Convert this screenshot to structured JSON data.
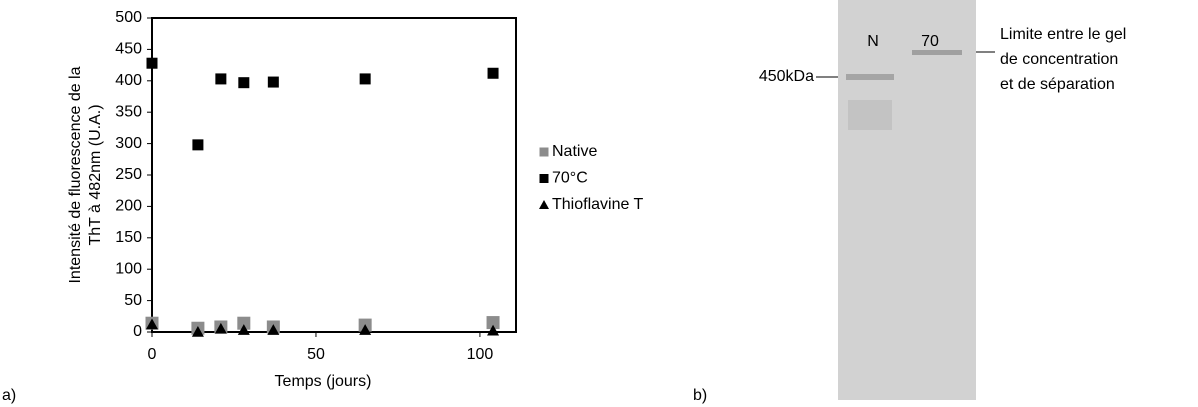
{
  "chart_data": {
    "type": "scatter",
    "x_label": "Temps (jours)",
    "y_label": [
      "Intensité de fluorescence de la",
      "ThT à 482nm (U.A.)"
    ],
    "x": [
      0,
      14,
      21,
      28,
      37,
      65,
      104
    ],
    "series": [
      {
        "name": "Native",
        "color": "#8c8c8c",
        "marker": "square",
        "values": [
          14,
          6,
          8,
          14,
          8,
          11,
          15
        ]
      },
      {
        "name": "70°C",
        "color": "#000000",
        "marker": "square",
        "values": [
          428,
          298,
          403,
          397,
          398,
          403,
          412
        ]
      },
      {
        "name": "Thioflavine T",
        "color": "#000000",
        "marker": "triangle",
        "values": [
          12,
          0,
          5,
          3,
          3,
          3,
          2
        ]
      }
    ],
    "xlim": [
      0,
      111
    ],
    "ylim": [
      0,
      500
    ],
    "xticks": [
      0,
      50,
      100
    ],
    "yticks": [
      0,
      50,
      100,
      150,
      200,
      250,
      300,
      350,
      400,
      450,
      500
    ],
    "legend": "right"
  },
  "panel_labels": [
    "a)",
    "b)"
  ],
  "gel": {
    "lanes": [
      "N",
      "70"
    ],
    "marker": "450kDa",
    "annotation": [
      "Limite entre le gel",
      "de concentration",
      "et de séparation"
    ]
  }
}
